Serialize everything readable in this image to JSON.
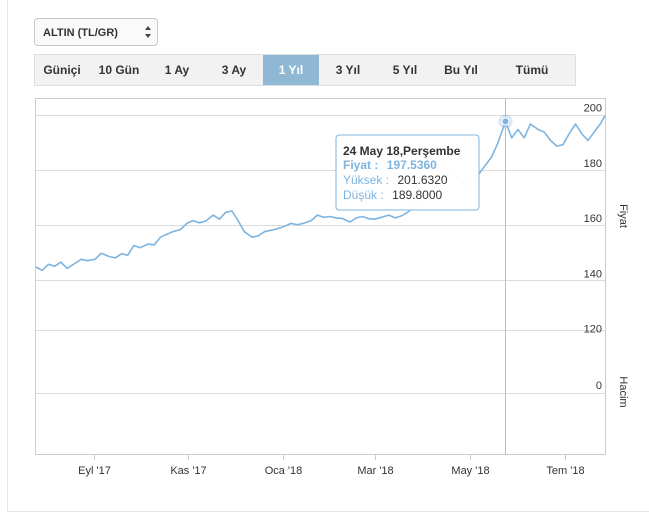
{
  "instrument_select": {
    "selected": "ALTIN (TL/GR)",
    "icon": "updown-arrows-icon"
  },
  "range_buttons": [
    {
      "label": "Güniçi",
      "active": false
    },
    {
      "label": "10 Gün",
      "active": false
    },
    {
      "label": "1 Ay",
      "active": false
    },
    {
      "label": "3 Ay",
      "active": false
    },
    {
      "label": "1 Yıl",
      "active": true
    },
    {
      "label": "3 Yıl",
      "active": false
    },
    {
      "label": "5 Yıl",
      "active": false
    },
    {
      "label": "Bu Yıl",
      "active": false
    },
    {
      "label": "Tümü",
      "active": false
    }
  ],
  "colors": {
    "series": "#7db4e0",
    "active_button": "#8fb8d4"
  },
  "tooltip": {
    "title": "24 May 18,Perşembe",
    "rows": [
      {
        "label": "Fiyat :",
        "value": "197.5360",
        "strong": true
      },
      {
        "label": "Yüksek :",
        "value": "201.6320",
        "strong": false
      },
      {
        "label": "Düşük :",
        "value": "189.8000",
        "strong": false
      }
    ],
    "x": "2018-05-24",
    "y": 197.536
  },
  "chart_data": {
    "type": "line",
    "title": "",
    "price_axis": {
      "label": "Fiyat",
      "range": [
        122,
        206
      ],
      "ticks": [
        120,
        140,
        160,
        180,
        200
      ]
    },
    "volume_axis": {
      "label": "Hacim",
      "ticks": [
        0
      ]
    },
    "x_range": [
      "2017-07-26",
      "2018-07-27"
    ],
    "x_ticks": [
      {
        "date": "2017-09-01",
        "label": "Eyl '17"
      },
      {
        "date": "2017-11-01",
        "label": "Kas '17"
      },
      {
        "date": "2018-01-01",
        "label": "Oca '18"
      },
      {
        "date": "2018-03-01",
        "label": "Mar '18"
      },
      {
        "date": "2018-05-01",
        "label": "May '18"
      },
      {
        "date": "2018-07-01",
        "label": "Tem '18"
      }
    ],
    "grid": true,
    "series": [
      {
        "values": [
          [
            "2017-07-26",
            144.8
          ],
          [
            "2017-07-30",
            143.6
          ],
          [
            "2017-08-03",
            145.8
          ],
          [
            "2017-08-07",
            145.1
          ],
          [
            "2017-08-11",
            146.6
          ],
          [
            "2017-08-15",
            144.3
          ],
          [
            "2017-08-20",
            146.1
          ],
          [
            "2017-08-24",
            147.6
          ],
          [
            "2017-08-28",
            147.1
          ],
          [
            "2017-09-02",
            147.6
          ],
          [
            "2017-09-06",
            149.8
          ],
          [
            "2017-09-11",
            148.6
          ],
          [
            "2017-09-15",
            148.1
          ],
          [
            "2017-09-19",
            149.6
          ],
          [
            "2017-09-23",
            149.1
          ],
          [
            "2017-09-27",
            152.6
          ],
          [
            "2017-10-01",
            151.8
          ],
          [
            "2017-10-06",
            153.1
          ],
          [
            "2017-10-10",
            152.8
          ],
          [
            "2017-10-14",
            155.6
          ],
          [
            "2017-10-18",
            156.6
          ],
          [
            "2017-10-22",
            157.6
          ],
          [
            "2017-10-27",
            158.4
          ],
          [
            "2017-10-31",
            160.6
          ],
          [
            "2017-11-04",
            161.6
          ],
          [
            "2017-11-08",
            160.8
          ],
          [
            "2017-11-12",
            161.4
          ],
          [
            "2017-11-17",
            163.6
          ],
          [
            "2017-11-21",
            162.1
          ],
          [
            "2017-11-25",
            164.6
          ],
          [
            "2017-11-29",
            165.1
          ],
          [
            "2017-12-03",
            161.6
          ],
          [
            "2017-12-07",
            157.6
          ],
          [
            "2017-12-12",
            155.6
          ],
          [
            "2017-12-16",
            156.1
          ],
          [
            "2017-12-20",
            157.6
          ],
          [
            "2017-12-24",
            158.1
          ],
          [
            "2017-12-28",
            158.6
          ],
          [
            "2018-01-02",
            159.6
          ],
          [
            "2018-01-06",
            160.6
          ],
          [
            "2018-01-10",
            160.1
          ],
          [
            "2018-01-14",
            160.6
          ],
          [
            "2018-01-19",
            161.6
          ],
          [
            "2018-01-23",
            163.6
          ],
          [
            "2018-01-27",
            162.8
          ],
          [
            "2018-01-31",
            163.1
          ],
          [
            "2018-02-04",
            162.6
          ],
          [
            "2018-02-08",
            162.4
          ],
          [
            "2018-02-13",
            161.1
          ],
          [
            "2018-02-17",
            162.6
          ],
          [
            "2018-02-21",
            163.1
          ],
          [
            "2018-02-25",
            162.3
          ],
          [
            "2018-03-01",
            162.1
          ],
          [
            "2018-03-05",
            162.8
          ],
          [
            "2018-03-10",
            163.6
          ],
          [
            "2018-03-14",
            162.6
          ],
          [
            "2018-03-18",
            163.3
          ],
          [
            "2018-03-22",
            164.6
          ],
          [
            "2018-03-26",
            166.6
          ],
          [
            "2018-03-30",
            167.6
          ],
          [
            "2018-04-03",
            171.6
          ],
          [
            "2018-04-08",
            173.6
          ],
          [
            "2018-04-12",
            175.6
          ],
          [
            "2018-04-16",
            177.6
          ],
          [
            "2018-04-20",
            179.6
          ],
          [
            "2018-04-24",
            176.6
          ],
          [
            "2018-04-28",
            173.6
          ],
          [
            "2018-05-03",
            176.6
          ],
          [
            "2018-05-07",
            178.6
          ],
          [
            "2018-05-11",
            181.6
          ],
          [
            "2018-05-15",
            184.6
          ],
          [
            "2018-05-19",
            189.6
          ],
          [
            "2018-05-24",
            197.5
          ],
          [
            "2018-05-28",
            191.6
          ],
          [
            "2018-06-01",
            194.6
          ],
          [
            "2018-06-05",
            191.6
          ],
          [
            "2018-06-09",
            196.6
          ],
          [
            "2018-06-14",
            194.6
          ],
          [
            "2018-06-18",
            193.6
          ],
          [
            "2018-06-22",
            190.6
          ],
          [
            "2018-06-26",
            188.6
          ],
          [
            "2018-06-30",
            189.1
          ],
          [
            "2018-07-04",
            193.1
          ],
          [
            "2018-07-08",
            196.6
          ],
          [
            "2018-07-12",
            193.1
          ],
          [
            "2018-07-16",
            190.6
          ],
          [
            "2018-07-20",
            193.6
          ],
          [
            "2018-07-24",
            196.6
          ],
          [
            "2018-07-27",
            199.6
          ]
        ]
      }
    ]
  }
}
